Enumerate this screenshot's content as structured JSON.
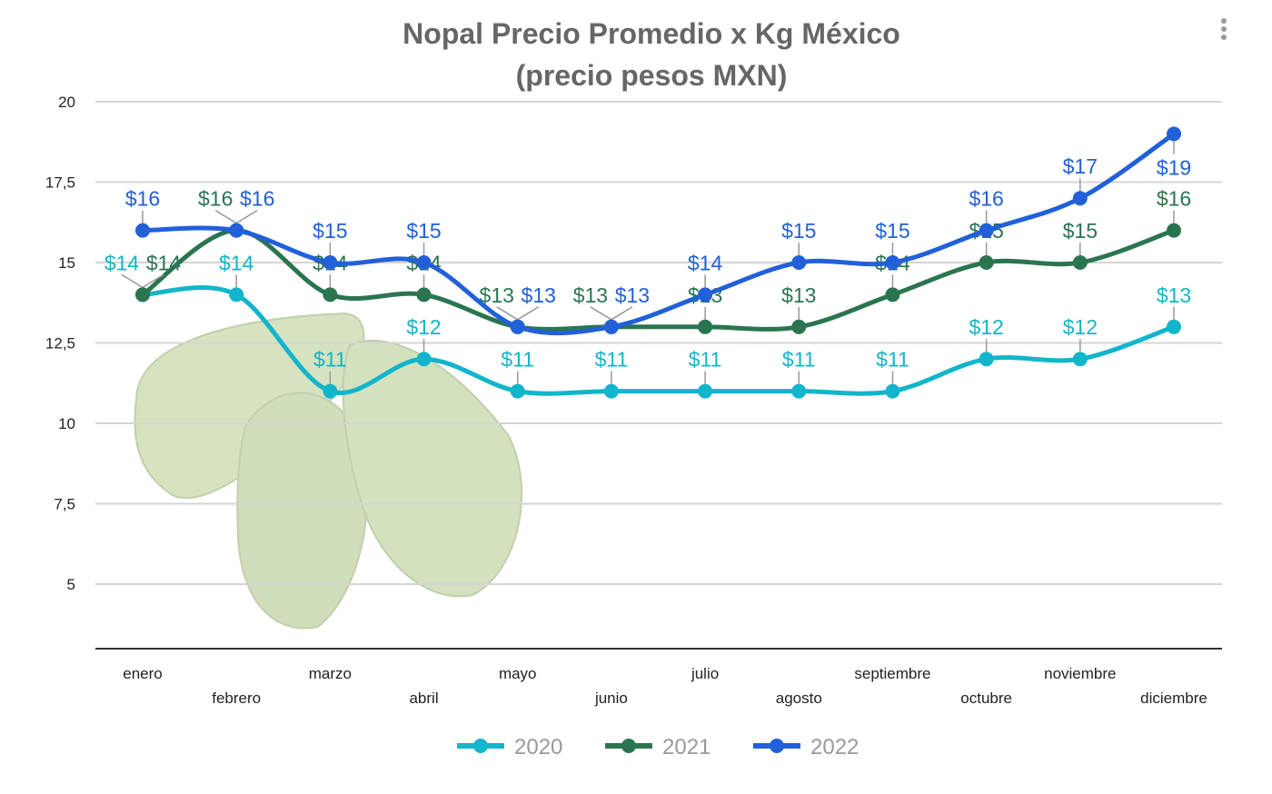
{
  "chart_data": {
    "type": "line",
    "title": "Nopal Precio Promedio x Kg México",
    "subtitle": "(precio pesos MXN)",
    "categories": [
      "enero",
      "febrero",
      "marzo",
      "abril",
      "mayo",
      "junio",
      "julio",
      "agosto",
      "septiembre",
      "octubre",
      "noviembre",
      "diciembre"
    ],
    "ylim": [
      3,
      20
    ],
    "yticks": [
      "5",
      "7,5",
      "10",
      "12,5",
      "15",
      "17,5",
      "20"
    ],
    "ytick_values": [
      5,
      7.5,
      10,
      12.5,
      15,
      17.5,
      20
    ],
    "grid": true,
    "smooth": true,
    "legend_position": "bottom",
    "data_label_prefix": "$",
    "series": [
      {
        "name": "2020",
        "color": "#12b5cb",
        "values": [
          14,
          14,
          11,
          12,
          11,
          11,
          11,
          11,
          11,
          12,
          12,
          13
        ]
      },
      {
        "name": "2021",
        "color": "#2a7550",
        "values": [
          14,
          16,
          14,
          14,
          13,
          13,
          13,
          13,
          14,
          15,
          15,
          16
        ]
      },
      {
        "name": "2022",
        "color": "#2160d8",
        "values": [
          16,
          16,
          15,
          15,
          13,
          13,
          14,
          15,
          15,
          16,
          17,
          19
        ]
      }
    ]
  },
  "menu_icon": "more-vertical-icon",
  "background_image": "nopal-cactus-pads"
}
